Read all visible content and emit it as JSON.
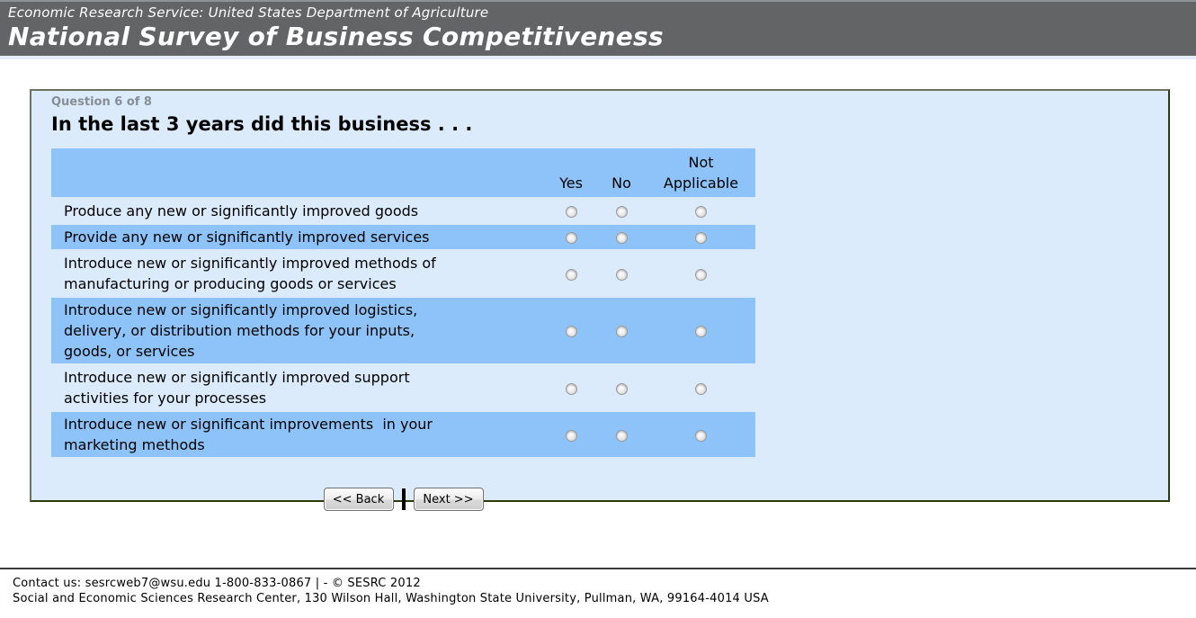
{
  "header": {
    "agency_line": "Economic Research Service: United States Department of Agriculture",
    "survey_title": "National Survey of Business Competitiveness"
  },
  "question": {
    "progress_label": "Question 6 of 8",
    "title": "In the last 3 years did this business . . ."
  },
  "survey_table": {
    "columns": [
      {
        "label": "Yes"
      },
      {
        "label": "No"
      },
      {
        "label": "Not Applicable"
      }
    ],
    "rows": [
      {
        "label": "Produce any new or significantly improved goods"
      },
      {
        "label": "Provide any new or significantly improved services"
      },
      {
        "label": "Introduce new or significantly improved methods of\nmanufacturing or producing goods or services"
      },
      {
        "label": "Introduce new or significantly improved logistics,\ndelivery, or distribution methods for your inputs,\ngoods, or services"
      },
      {
        "label": "Introduce new or significantly improved support\nactivities for your processes"
      },
      {
        "label": "Introduce new or significant improvements  in your\nmarketing methods"
      }
    ]
  },
  "navigation": {
    "back_label": "<< Back",
    "separator": "|",
    "next_label": "Next >>"
  },
  "footer": {
    "contact_line": "Contact us: sesrcweb7@wsu.edu 1-800-833-0867 | - © SESRC 2012",
    "address_line": "Social and Economic Sciences Research Center, 130 Wilson Hall, Washington State University, Pullman, WA, 99164-4014 USA"
  },
  "colors": {
    "header_background": "#636466",
    "panel_background": "#dcebfc",
    "row_highlight": "#8dc3f8",
    "panel_border_dark": "#2c3a0c",
    "footer_rule": "#3b3b3b"
  }
}
